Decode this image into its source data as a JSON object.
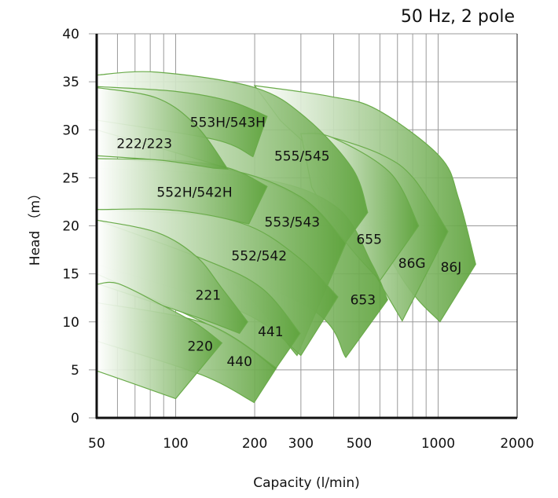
{
  "chart_data": {
    "type": "area",
    "title": "50 Hz, 2 pole",
    "xlabel": "Capacity (l/min)",
    "ylabel": "Head （m）",
    "x_scale": "log",
    "xlim": [
      50,
      2000
    ],
    "ylim": [
      0,
      40
    ],
    "x_ticks": [
      50,
      100,
      200,
      300,
      500,
      1000,
      2000
    ],
    "y_ticks": [
      0,
      5,
      10,
      15,
      20,
      25,
      30,
      35,
      40
    ],
    "grid": true,
    "colors": {
      "fill_start": "#ffffff",
      "fill_end": "#5ea33c",
      "edge": "#6aab4a",
      "axis": "#111111",
      "grid": "#9a9a9a"
    },
    "regions": [
      {
        "name": "86J",
        "label_at": [
          1120,
          15.7
        ],
        "top": [
          [
            200,
            34.6
          ],
          [
            383,
            33.5
          ],
          [
            585,
            32.1
          ],
          [
            1016,
            27.2
          ],
          [
            1198,
            22.8
          ],
          [
            1390,
            16
          ]
        ],
        "bottom": [
          [
            1016,
            10
          ],
          [
            750,
            14
          ],
          [
            450,
            24
          ],
          [
            250,
            31
          ]
        ]
      },
      {
        "name": "86G",
        "label_at": [
          795,
          16.1
        ],
        "top": [
          [
            300,
            29.6
          ],
          [
            395,
            29.2
          ],
          [
            620,
            27.3
          ],
          [
            809,
            24.9
          ],
          [
            1090,
            19.4
          ]
        ],
        "bottom": [
          [
            730,
            10.1
          ],
          [
            560,
            15.5
          ],
          [
            380,
            24
          ]
        ]
      },
      {
        "name": "655",
        "label_at": [
          546,
          18.6
        ],
        "top": [
          [
            300,
            29.6
          ],
          [
            395,
            29.2
          ],
          [
            658,
            25.5
          ],
          [
            843,
            20
          ]
        ],
        "bottom": [
          [
            600,
            14.3
          ],
          [
            445,
            18.3
          ],
          [
            330,
            24
          ]
        ]
      },
      {
        "name": "653",
        "label_at": [
          517,
          12.3
        ],
        "top": [
          [
            50,
            26
          ],
          [
            200,
            25
          ],
          [
            408,
            22
          ],
          [
            560,
            16
          ],
          [
            642,
            12.3
          ]
        ],
        "bottom": [
          [
            445,
            6.3
          ],
          [
            300,
            12
          ],
          [
            50,
            20
          ]
        ]
      },
      {
        "name": "555/545",
        "label_at": [
          303,
          27.3
        ],
        "top": [
          [
            50,
            35.7
          ],
          [
            85,
            36
          ],
          [
            200,
            34.4
          ],
          [
            315,
            31.2
          ],
          [
            473,
            25.9
          ],
          [
            539,
            21.4
          ]
        ],
        "bottom": [
          [
            445,
            18.3
          ],
          [
            250,
            24
          ],
          [
            50,
            30
          ]
        ]
      },
      {
        "name": "553/543",
        "label_at": [
          278,
          20.4
        ],
        "top": [
          [
            50,
            27
          ],
          [
            150,
            26
          ],
          [
            300,
            23
          ],
          [
            445,
            18.2
          ]
        ],
        "bottom": [
          [
            290,
            6.5
          ],
          [
            150,
            15
          ],
          [
            50,
            20
          ]
        ]
      },
      {
        "name": "553H/543H",
        "label_at": [
          158,
          30.8
        ],
        "top": [
          [
            50,
            34.5
          ],
          [
            100,
            34
          ],
          [
            160,
            33
          ],
          [
            223,
            31.4
          ]
        ],
        "bottom": [
          [
            197,
            27.2
          ],
          [
            140,
            29
          ],
          [
            50,
            31
          ]
        ]
      },
      {
        "name": "552H/542H",
        "label_at": [
          118,
          23.5
        ],
        "top": [
          [
            50,
            27
          ],
          [
            100,
            26.8
          ],
          [
            160,
            26
          ],
          [
            223,
            24.1
          ]
        ],
        "bottom": [
          [
            190,
            20.2
          ],
          [
            120,
            21.2
          ],
          [
            50,
            21.7
          ]
        ]
      },
      {
        "name": "222/223",
        "label_at": [
          76,
          28.6
        ],
        "top": [
          [
            50,
            34.4
          ],
          [
            85,
            33.3
          ],
          [
            120,
            30.4
          ],
          [
            158,
            25.9
          ]
        ],
        "bottom": [
          [
            140,
            26
          ],
          [
            90,
            26.8
          ],
          [
            50,
            27.3
          ]
        ]
      },
      {
        "name": "552/542",
        "label_at": [
          208,
          16.9
        ],
        "top": [
          [
            50,
            21.7
          ],
          [
            100,
            21.6
          ],
          [
            190,
            20
          ],
          [
            300,
            16.5
          ],
          [
            415,
            12.6
          ]
        ],
        "bottom": [
          [
            300,
            6.5
          ],
          [
            180,
            11
          ],
          [
            50,
            16
          ]
        ]
      },
      {
        "name": "441",
        "label_at": [
          230,
          9.0
        ],
        "top": [
          [
            50,
            20.6
          ],
          [
            131,
            16.4
          ],
          [
            213,
            13.5
          ],
          [
            298,
            8.8
          ]
        ],
        "bottom": [
          [
            240,
            5.1
          ],
          [
            150,
            9
          ],
          [
            50,
            15
          ]
        ]
      },
      {
        "name": "221",
        "label_at": [
          133,
          12.8
        ],
        "top": [
          [
            50,
            20.6
          ],
          [
            85,
            19.3
          ],
          [
            120,
            16.8
          ],
          [
            150,
            13.5
          ],
          [
            188,
            10
          ]
        ],
        "bottom": [
          [
            175,
            8.8
          ],
          [
            120,
            10.5
          ],
          [
            50,
            14
          ]
        ]
      },
      {
        "name": "440",
        "label_at": [
          175,
          5.9
        ],
        "top": [
          [
            50,
            12
          ],
          [
            131,
            9.8
          ],
          [
            242,
            5.2
          ]
        ],
        "bottom": [
          [
            199,
            1.6
          ],
          [
            125,
            4.5
          ],
          [
            50,
            8
          ]
        ]
      },
      {
        "name": "220",
        "label_at": [
          124,
          7.5
        ],
        "top": [
          [
            50,
            13.9
          ],
          [
            60,
            14
          ],
          [
            85,
            12
          ],
          [
            120,
            9.8
          ],
          [
            150,
            7.8
          ]
        ],
        "bottom": [
          [
            100,
            2
          ],
          [
            70,
            3.5
          ],
          [
            50,
            4.9
          ]
        ]
      }
    ]
  }
}
